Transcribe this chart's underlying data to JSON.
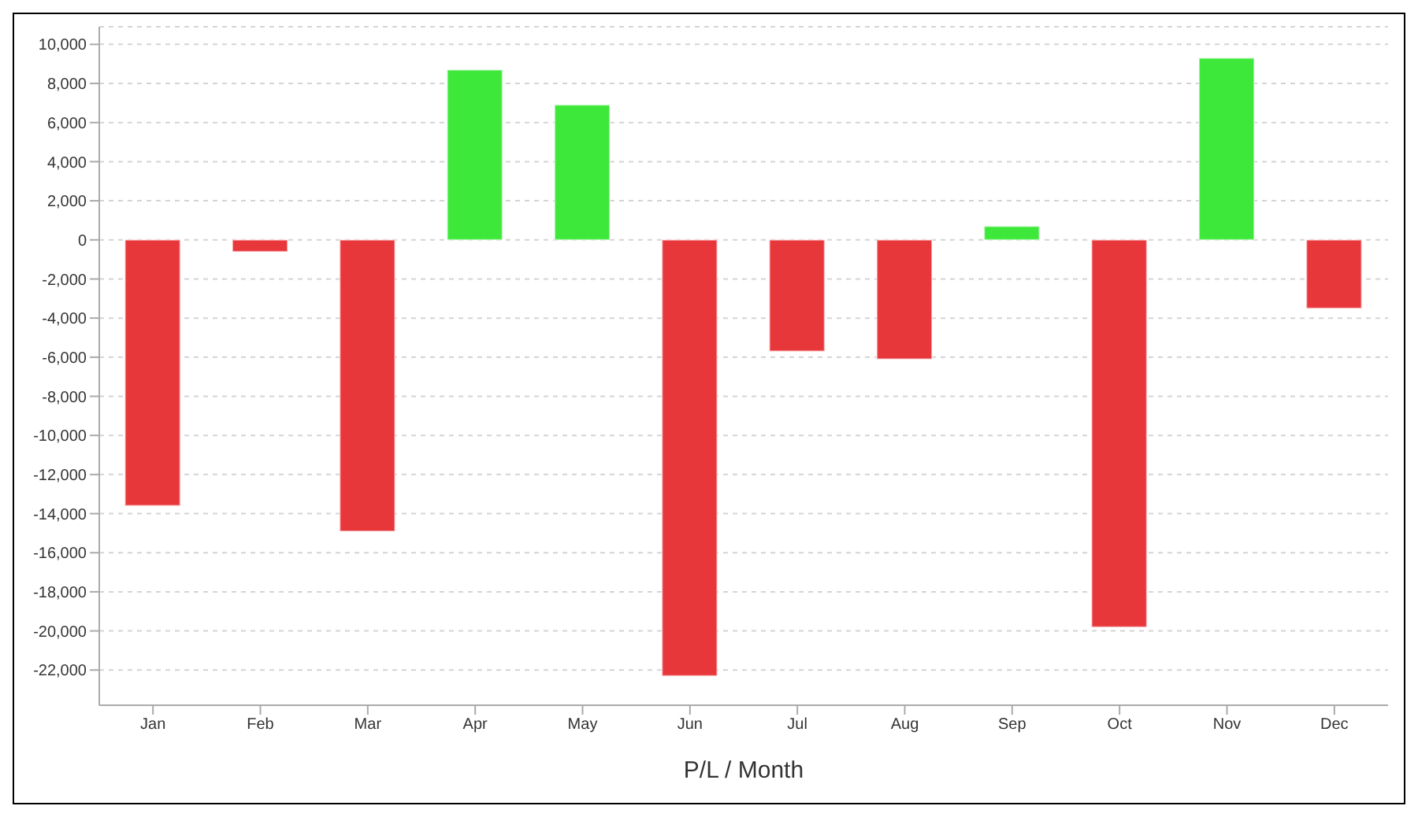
{
  "chart_data": {
    "type": "bar",
    "xlabel": "P/L / Month",
    "categories": [
      "Jan",
      "Feb",
      "Mar",
      "Apr",
      "May",
      "Jun",
      "Jul",
      "Aug",
      "Sep",
      "Oct",
      "Nov",
      "Dec"
    ],
    "values": [
      -13600,
      -600,
      -14900,
      8700,
      6900,
      -22300,
      -5700,
      -6100,
      700,
      -19800,
      9300,
      -3500
    ],
    "colors": [
      "#e8373b",
      "#e8373b",
      "#e8373b",
      "#3ee83a",
      "#3ee83a",
      "#e8373b",
      "#e8373b",
      "#e8373b",
      "#3ee83a",
      "#e8373b",
      "#3ee83a",
      "#e8373b"
    ],
    "ylim": [
      -23800,
      10900
    ],
    "yticks": [
      {
        "value": -22000,
        "label": "-22,000"
      },
      {
        "value": -20000,
        "label": "-20,000"
      },
      {
        "value": -18000,
        "label": "-18,000"
      },
      {
        "value": -16000,
        "label": "-16,000"
      },
      {
        "value": -14000,
        "label": "-14,000"
      },
      {
        "value": -12000,
        "label": "-12,000"
      },
      {
        "value": -10000,
        "label": "-10,000"
      },
      {
        "value": -8000,
        "label": "-8,000"
      },
      {
        "value": -6000,
        "label": "-6,000"
      },
      {
        "value": -4000,
        "label": "-4,000"
      },
      {
        "value": -2000,
        "label": "-2,000"
      },
      0,
      {
        "value": 2000,
        "label": "2,000"
      },
      {
        "value": 4000,
        "label": "4,000"
      },
      {
        "value": 6000,
        "label": "6,000"
      },
      {
        "value": 8000,
        "label": "8,000"
      },
      {
        "value": 10000,
        "label": "10,000"
      }
    ],
    "grid": "y"
  }
}
